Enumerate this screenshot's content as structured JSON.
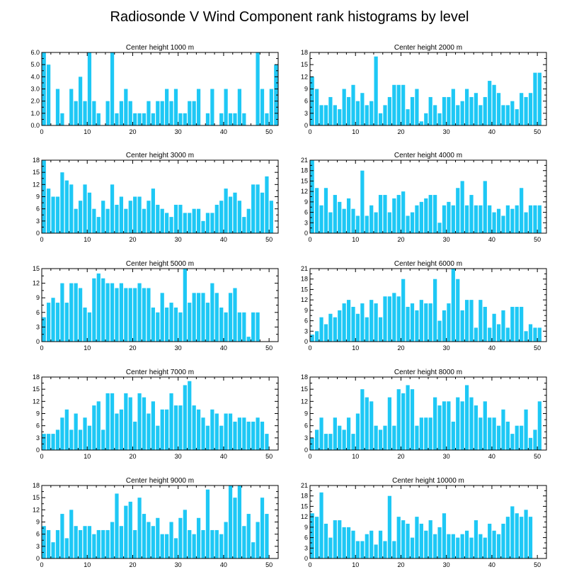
{
  "title": "Radiosonde V Wind Component rank histograms by level",
  "style": {
    "bar_color": "#1ec8f5",
    "axis_color": "#000000"
  },
  "chart_data": [
    {
      "type": "bar",
      "title": "Center height 1000 m",
      "xlim": [
        0,
        52
      ],
      "xticks": [
        0,
        10,
        20,
        30,
        40,
        50
      ],
      "ylim": [
        0,
        6
      ],
      "yticks": [
        0,
        1,
        2,
        3,
        4,
        5,
        6
      ],
      "ytick_labels": [
        "0.0",
        "1.0",
        "2.0",
        "3.0",
        "4.0",
        "5.0",
        "6.0"
      ],
      "values": [
        6,
        5,
        0,
        3,
        1,
        0,
        3,
        2,
        4,
        2,
        6,
        2,
        1,
        0,
        2,
        6,
        1,
        2,
        3,
        2,
        1,
        1,
        1,
        2,
        1,
        2,
        2,
        3,
        2,
        3,
        1,
        1,
        2,
        2,
        3,
        0,
        1,
        3,
        0,
        1,
        3,
        1,
        1,
        3,
        1,
        0,
        0,
        6,
        3,
        1,
        3,
        5
      ]
    },
    {
      "type": "bar",
      "title": "Center height 2000 m",
      "xlim": [
        0,
        52
      ],
      "xticks": [
        0,
        10,
        20,
        30,
        40,
        50
      ],
      "ylim": [
        0,
        18
      ],
      "yticks": [
        0,
        3,
        6,
        9,
        12,
        15,
        18
      ],
      "ytick_labels": [
        "0",
        "3",
        "6",
        "9",
        "12",
        "15",
        "18"
      ],
      "values": [
        12,
        9,
        5,
        5,
        7,
        5,
        4,
        9,
        7,
        10,
        6,
        8,
        5,
        6,
        17,
        3,
        5,
        7,
        10,
        10,
        10,
        4,
        7,
        9,
        1,
        3,
        7,
        5,
        3,
        7,
        7,
        9,
        5,
        6,
        9,
        7,
        8,
        5,
        7,
        11,
        10,
        8,
        5,
        5,
        6,
        4,
        8,
        7,
        8,
        13,
        13
      ]
    },
    {
      "type": "bar",
      "title": "Center height 3000 m",
      "xlim": [
        0,
        52
      ],
      "xticks": [
        0,
        10,
        20,
        30,
        40,
        50
      ],
      "ylim": [
        0,
        18
      ],
      "yticks": [
        0,
        3,
        6,
        9,
        12,
        15,
        18
      ],
      "ytick_labels": [
        "0",
        "3",
        "6",
        "9",
        "12",
        "15",
        "18"
      ],
      "values": [
        18,
        11,
        9,
        9,
        15,
        13,
        12,
        6,
        8,
        12,
        10,
        6,
        4,
        8,
        6,
        12,
        7,
        9,
        6,
        8,
        9,
        9,
        6,
        8,
        11,
        7,
        6,
        5,
        4,
        7,
        7,
        5,
        5,
        6,
        6,
        3,
        5,
        5,
        7,
        8,
        11,
        9,
        10,
        8,
        4,
        6,
        12,
        12,
        10,
        14,
        8
      ]
    },
    {
      "type": "bar",
      "title": "Center height 4000 m",
      "xlim": [
        0,
        52
      ],
      "xticks": [
        0,
        10,
        20,
        30,
        40,
        50
      ],
      "ylim": [
        0,
        21
      ],
      "yticks": [
        0,
        3,
        6,
        9,
        12,
        15,
        18,
        21
      ],
      "ytick_labels": [
        "0",
        "3",
        "6",
        "9",
        "12",
        "15",
        "18",
        "21"
      ],
      "values": [
        21,
        13,
        8,
        13,
        6,
        11,
        9,
        7,
        10,
        7,
        5,
        18,
        5,
        8,
        6,
        11,
        11,
        6,
        10,
        11,
        12,
        5,
        6,
        8,
        9,
        10,
        11,
        11,
        3,
        8,
        9,
        8,
        13,
        15,
        8,
        11,
        8,
        8,
        15,
        8,
        6,
        7,
        5,
        8,
        7,
        8,
        13,
        6,
        8,
        8,
        8
      ]
    },
    {
      "type": "bar",
      "title": "Center height 5000 m",
      "xlim": [
        0,
        52
      ],
      "xticks": [
        0,
        10,
        20,
        30,
        40,
        50
      ],
      "ylim": [
        0,
        15
      ],
      "yticks": [
        0,
        3,
        6,
        9,
        12,
        15
      ],
      "ytick_labels": [
        "0",
        "3",
        "6",
        "9",
        "12",
        "15"
      ],
      "values": [
        5,
        8,
        9,
        8,
        12,
        8,
        12,
        12,
        11,
        7,
        6,
        13,
        14,
        13,
        12,
        12,
        11,
        12,
        11,
        11,
        11,
        12,
        11,
        11,
        7,
        6,
        10,
        7,
        8,
        7,
        6,
        15,
        8,
        10,
        10,
        10,
        8,
        12,
        10,
        7,
        6,
        10,
        11,
        6,
        6,
        1,
        6,
        6
      ]
    },
    {
      "type": "bar",
      "title": "Center height 6000 m",
      "xlim": [
        0,
        52
      ],
      "xticks": [
        0,
        10,
        20,
        30,
        40,
        50
      ],
      "ylim": [
        0,
        21
      ],
      "yticks": [
        0,
        3,
        6,
        9,
        12,
        15,
        18,
        21
      ],
      "ytick_labels": [
        "0",
        "3",
        "6",
        "9",
        "12",
        "15",
        "18",
        "21"
      ],
      "values": [
        2,
        3,
        7,
        5,
        8,
        7,
        9,
        11,
        12,
        10,
        8,
        11,
        7,
        12,
        11,
        7,
        13,
        13,
        14,
        13,
        18,
        10,
        11,
        9,
        12,
        11,
        11,
        18,
        6,
        9,
        11,
        22,
        18,
        9,
        12,
        12,
        4,
        12,
        10,
        4,
        8,
        5,
        9,
        4,
        10,
        10,
        10,
        3,
        5,
        4,
        4
      ]
    },
    {
      "type": "bar",
      "title": "Center height 7000 m",
      "xlim": [
        0,
        52
      ],
      "xticks": [
        0,
        10,
        20,
        30,
        40,
        50
      ],
      "ylim": [
        0,
        18
      ],
      "yticks": [
        0,
        3,
        6,
        9,
        12,
        15,
        18
      ],
      "ytick_labels": [
        "0",
        "3",
        "6",
        "9",
        "12",
        "15",
        "18"
      ],
      "values": [
        4,
        4,
        4,
        5,
        8,
        10,
        5,
        9,
        5,
        8,
        6,
        11,
        12,
        5,
        14,
        14,
        9,
        10,
        14,
        13,
        7,
        14,
        13,
        9,
        12,
        6,
        10,
        10,
        14,
        11,
        11,
        16,
        17,
        11,
        10,
        8,
        6,
        10,
        9,
        6,
        9,
        9,
        7,
        8,
        8,
        7,
        7,
        8,
        7,
        4
      ]
    },
    {
      "type": "bar",
      "title": "Center height 8000 m",
      "xlim": [
        0,
        52
      ],
      "xticks": [
        0,
        10,
        20,
        30,
        40,
        50
      ],
      "ylim": [
        0,
        18
      ],
      "yticks": [
        0,
        3,
        6,
        9,
        12,
        15,
        18
      ],
      "ytick_labels": [
        "0",
        "3",
        "6",
        "9",
        "12",
        "15",
        "18"
      ],
      "values": [
        3,
        5,
        8,
        4,
        4,
        8,
        6,
        5,
        8,
        4,
        9,
        15,
        13,
        12,
        6,
        5,
        6,
        13,
        6,
        15,
        14,
        16,
        15,
        6,
        8,
        8,
        8,
        13,
        11,
        12,
        12,
        7,
        13,
        12,
        16,
        13,
        11,
        8,
        12,
        8,
        8,
        6,
        10,
        7,
        4,
        6,
        6,
        10,
        3,
        5,
        12
      ]
    },
    {
      "type": "bar",
      "title": "Center height 9000 m",
      "xlim": [
        0,
        52
      ],
      "xticks": [
        0,
        10,
        20,
        30,
        40,
        50
      ],
      "ylim": [
        0,
        18
      ],
      "yticks": [
        0,
        3,
        6,
        9,
        12,
        15,
        18
      ],
      "ytick_labels": [
        "0",
        "3",
        "6",
        "9",
        "12",
        "15",
        "18"
      ],
      "values": [
        8,
        7,
        4,
        7,
        11,
        5,
        12,
        8,
        7,
        8,
        8,
        6,
        7,
        7,
        7,
        9,
        16,
        8,
        13,
        14,
        7,
        15,
        11,
        9,
        8,
        10,
        6,
        6,
        9,
        5,
        10,
        12,
        7,
        6,
        10,
        7,
        17,
        7,
        7,
        6,
        9,
        18,
        15,
        18,
        8,
        11,
        4,
        9,
        15,
        11
      ]
    },
    {
      "type": "bar",
      "title": "Center height 10000 m",
      "xlim": [
        0,
        52
      ],
      "xticks": [
        0,
        10,
        20,
        30,
        40,
        50
      ],
      "ylim": [
        0,
        21
      ],
      "yticks": [
        0,
        3,
        6,
        9,
        12,
        15,
        18,
        21
      ],
      "ytick_labels": [
        "0",
        "3",
        "6",
        "9",
        "12",
        "15",
        "18",
        "21"
      ],
      "values": [
        13,
        12,
        19,
        10,
        6,
        11,
        11,
        9,
        9,
        8,
        5,
        5,
        7,
        8,
        4,
        8,
        5,
        18,
        5,
        12,
        11,
        10,
        6,
        12,
        10,
        8,
        11,
        7,
        9,
        13,
        7,
        7,
        6,
        7,
        8,
        6,
        11,
        7,
        6,
        10,
        8,
        7,
        10,
        12,
        15,
        13,
        12,
        14,
        12
      ]
    }
  ]
}
